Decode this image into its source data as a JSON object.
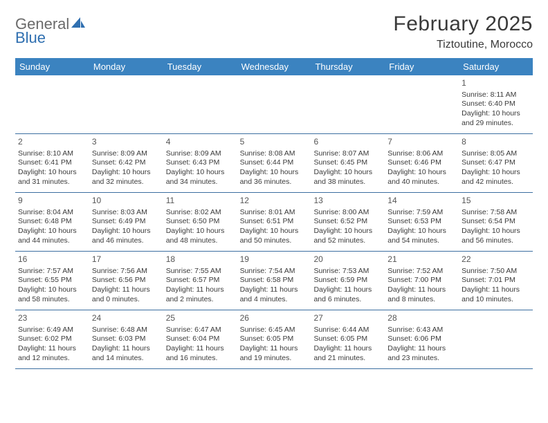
{
  "logo": {
    "word1": "General",
    "word2": "Blue"
  },
  "title": "February 2025",
  "location": "Tiztoutine, Morocco",
  "colors": {
    "header_bg": "#3b83c0",
    "header_text": "#ffffff",
    "row_border": "#3b6ea0",
    "text": "#3a3a3a",
    "logo_gray": "#6a6a6a",
    "logo_blue": "#2f6fb0"
  },
  "day_names": [
    "Sunday",
    "Monday",
    "Tuesday",
    "Wednesday",
    "Thursday",
    "Friday",
    "Saturday"
  ],
  "weeks": [
    [
      null,
      null,
      null,
      null,
      null,
      null,
      {
        "n": "1",
        "sr": "8:11 AM",
        "ss": "6:40 PM",
        "dl": "10 hours and 29 minutes."
      }
    ],
    [
      {
        "n": "2",
        "sr": "8:10 AM",
        "ss": "6:41 PM",
        "dl": "10 hours and 31 minutes."
      },
      {
        "n": "3",
        "sr": "8:09 AM",
        "ss": "6:42 PM",
        "dl": "10 hours and 32 minutes."
      },
      {
        "n": "4",
        "sr": "8:09 AM",
        "ss": "6:43 PM",
        "dl": "10 hours and 34 minutes."
      },
      {
        "n": "5",
        "sr": "8:08 AM",
        "ss": "6:44 PM",
        "dl": "10 hours and 36 minutes."
      },
      {
        "n": "6",
        "sr": "8:07 AM",
        "ss": "6:45 PM",
        "dl": "10 hours and 38 minutes."
      },
      {
        "n": "7",
        "sr": "8:06 AM",
        "ss": "6:46 PM",
        "dl": "10 hours and 40 minutes."
      },
      {
        "n": "8",
        "sr": "8:05 AM",
        "ss": "6:47 PM",
        "dl": "10 hours and 42 minutes."
      }
    ],
    [
      {
        "n": "9",
        "sr": "8:04 AM",
        "ss": "6:48 PM",
        "dl": "10 hours and 44 minutes."
      },
      {
        "n": "10",
        "sr": "8:03 AM",
        "ss": "6:49 PM",
        "dl": "10 hours and 46 minutes."
      },
      {
        "n": "11",
        "sr": "8:02 AM",
        "ss": "6:50 PM",
        "dl": "10 hours and 48 minutes."
      },
      {
        "n": "12",
        "sr": "8:01 AM",
        "ss": "6:51 PM",
        "dl": "10 hours and 50 minutes."
      },
      {
        "n": "13",
        "sr": "8:00 AM",
        "ss": "6:52 PM",
        "dl": "10 hours and 52 minutes."
      },
      {
        "n": "14",
        "sr": "7:59 AM",
        "ss": "6:53 PM",
        "dl": "10 hours and 54 minutes."
      },
      {
        "n": "15",
        "sr": "7:58 AM",
        "ss": "6:54 PM",
        "dl": "10 hours and 56 minutes."
      }
    ],
    [
      {
        "n": "16",
        "sr": "7:57 AM",
        "ss": "6:55 PM",
        "dl": "10 hours and 58 minutes."
      },
      {
        "n": "17",
        "sr": "7:56 AM",
        "ss": "6:56 PM",
        "dl": "11 hours and 0 minutes."
      },
      {
        "n": "18",
        "sr": "7:55 AM",
        "ss": "6:57 PM",
        "dl": "11 hours and 2 minutes."
      },
      {
        "n": "19",
        "sr": "7:54 AM",
        "ss": "6:58 PM",
        "dl": "11 hours and 4 minutes."
      },
      {
        "n": "20",
        "sr": "7:53 AM",
        "ss": "6:59 PM",
        "dl": "11 hours and 6 minutes."
      },
      {
        "n": "21",
        "sr": "7:52 AM",
        "ss": "7:00 PM",
        "dl": "11 hours and 8 minutes."
      },
      {
        "n": "22",
        "sr": "7:50 AM",
        "ss": "7:01 PM",
        "dl": "11 hours and 10 minutes."
      }
    ],
    [
      {
        "n": "23",
        "sr": "6:49 AM",
        "ss": "6:02 PM",
        "dl": "11 hours and 12 minutes."
      },
      {
        "n": "24",
        "sr": "6:48 AM",
        "ss": "6:03 PM",
        "dl": "11 hours and 14 minutes."
      },
      {
        "n": "25",
        "sr": "6:47 AM",
        "ss": "6:04 PM",
        "dl": "11 hours and 16 minutes."
      },
      {
        "n": "26",
        "sr": "6:45 AM",
        "ss": "6:05 PM",
        "dl": "11 hours and 19 minutes."
      },
      {
        "n": "27",
        "sr": "6:44 AM",
        "ss": "6:05 PM",
        "dl": "11 hours and 21 minutes."
      },
      {
        "n": "28",
        "sr": "6:43 AM",
        "ss": "6:06 PM",
        "dl": "11 hours and 23 minutes."
      },
      null
    ]
  ],
  "labels": {
    "sunrise": "Sunrise: ",
    "sunset": "Sunset: ",
    "daylight": "Daylight: "
  }
}
